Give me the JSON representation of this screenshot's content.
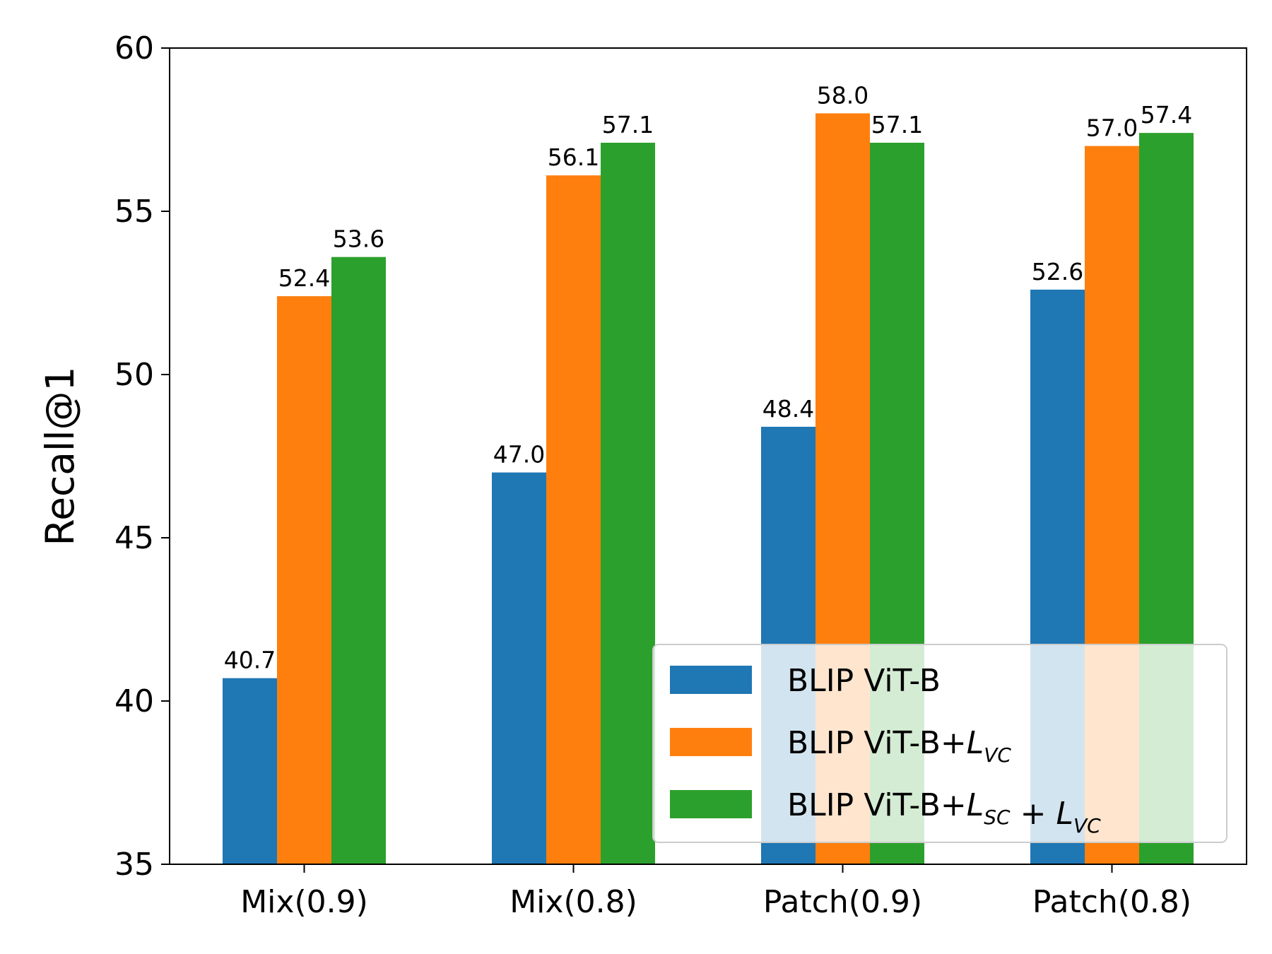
{
  "chart_data": {
    "type": "bar",
    "title": "",
    "xlabel": "",
    "ylabel": "Recall@1",
    "ylim": [
      35,
      60
    ],
    "yticks": [
      35,
      40,
      45,
      50,
      55,
      60
    ],
    "categories": [
      "Mix(0.9)",
      "Mix(0.8)",
      "Patch(0.9)",
      "Patch(0.8)"
    ],
    "series": [
      {
        "name": "BLIP ViT-B",
        "legend_prefix": "BLIP ViT-B",
        "color": "#1f77b4",
        "values": [
          40.7,
          47.0,
          48.4,
          52.6
        ],
        "labels": [
          "40.7",
          "47.0",
          "48.4",
          "52.6"
        ]
      },
      {
        "name": "BLIP ViT-B+L_VC",
        "legend_prefix": "BLIP ViT-B+",
        "color": "#ff7f0e",
        "values": [
          52.4,
          56.1,
          58.0,
          57.0
        ],
        "labels": [
          "52.4",
          "56.1",
          "58.0",
          "57.0"
        ]
      },
      {
        "name": "BLIP ViT-B+L_SC+L_VC",
        "legend_prefix": "BLIP ViT-B+",
        "color": "#2ca02c",
        "values": [
          53.6,
          57.1,
          57.1,
          57.4
        ],
        "labels": [
          "53.6",
          "57.1",
          "57.1",
          "57.4"
        ]
      }
    ],
    "legend": {
      "position": "lower-right",
      "items": [
        {
          "text": "BLIP ViT-B",
          "math": []
        },
        {
          "text": "BLIP ViT-B+",
          "math": [
            {
              "base": "L",
              "sub": "VC"
            }
          ]
        },
        {
          "text": "BLIP ViT-B+",
          "math": [
            {
              "base": "L",
              "sub": "SC"
            },
            {
              "op": " + "
            },
            {
              "base": "L",
              "sub": "VC"
            }
          ]
        }
      ]
    },
    "grid": false
  }
}
